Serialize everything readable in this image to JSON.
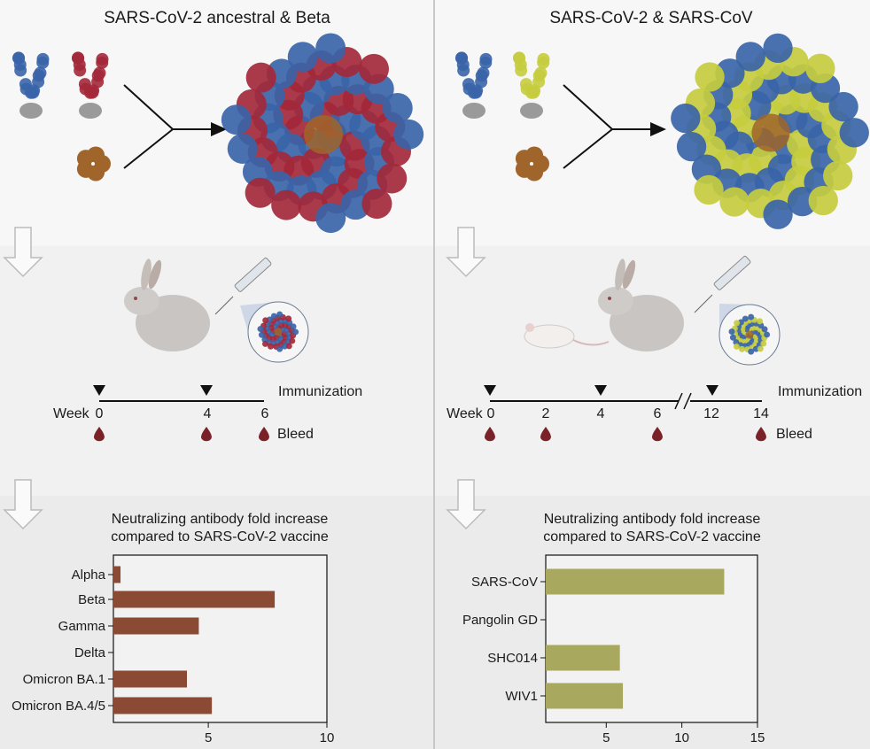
{
  "panels": [
    {
      "title": "SARS-CoV-2 ancestral & Beta",
      "timeline": {
        "immunization_label": "Immunization",
        "bleed_label": "Bleed",
        "week_prefix": "Week",
        "weeks": [
          "0",
          "4",
          "6"
        ],
        "immunization_weeks": [
          "0",
          "4"
        ],
        "bleed_weeks": [
          "0",
          "4",
          "6"
        ]
      },
      "animals": [
        "rabbit"
      ]
    },
    {
      "title": "SARS-CoV-2 & SARS-CoV",
      "timeline": {
        "immunization_label": "Immunization",
        "bleed_label": "Bleed",
        "week_prefix": "Week",
        "weeks": [
          "0",
          "2",
          "4",
          "6",
          "12",
          "14"
        ],
        "immunization_weeks": [
          "0",
          "4",
          "12"
        ],
        "bleed_weeks": [
          "0",
          "2",
          "6",
          "14"
        ]
      },
      "animals": [
        "mouse",
        "rabbit"
      ]
    }
  ],
  "colors": {
    "ancestral_spike": "#3a64a8",
    "beta_spike": "#a3283a",
    "sars_cov_spike": "#c5cc3e",
    "scaffold": "#a0652a",
    "bleed_drop": "#7a2228",
    "bar_left": "#8b4a33",
    "bar_right": "#a8a95e"
  },
  "chart_data": [
    {
      "type": "bar",
      "orientation": "horizontal",
      "title": "Neutralizing antibody fold increase compared to SARS-CoV-2 vaccine",
      "title_lines": [
        "Neutralizing antibody fold increase",
        "compared to SARS-CoV-2 vaccine"
      ],
      "categories": [
        "Alpha",
        "Beta",
        "Gamma",
        "Delta",
        "Omicron BA.1",
        "Omicron BA.4/5"
      ],
      "values": [
        1.3,
        7.8,
        4.6,
        null,
        4.1,
        5.15
      ],
      "xlim": [
        1,
        10
      ],
      "xticks": [
        "5",
        "10"
      ],
      "grid": false
    },
    {
      "type": "bar",
      "orientation": "horizontal",
      "title": "Neutralizing antibody fold increase compared to SARS-CoV-2 vaccine",
      "title_lines": [
        "Neutralizing antibody fold increase",
        "compared to SARS-CoV-2 vaccine"
      ],
      "categories": [
        "SARS-CoV",
        "Pangolin GD",
        "SHC014",
        "WIV1"
      ],
      "values": [
        12.8,
        null,
        5.9,
        6.1
      ],
      "xlim": [
        1,
        15
      ],
      "xticks": [
        "5",
        "10",
        "15"
      ],
      "grid": false
    }
  ]
}
